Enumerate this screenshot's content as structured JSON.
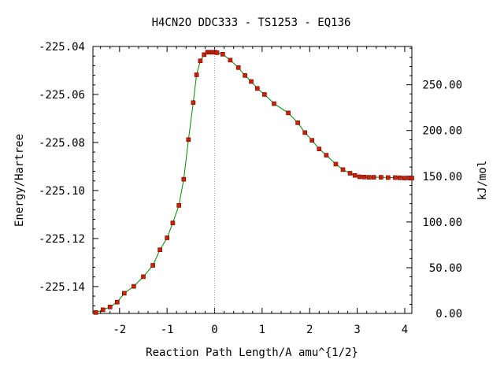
{
  "chart_data": {
    "type": "line",
    "title": "H4CN2O   DDC333 - TS1253 - EQ136",
    "xlabel": "Reaction Path Length/A amu^{1/2}",
    "ylabel": "Energy/Hartree",
    "y2label": "kJ/mol",
    "xlim": [
      -2.56,
      4.15
    ],
    "ylim": [
      -225.1512,
      -225.04
    ],
    "y2lim": [
      0.0,
      291.9
    ],
    "x_ticks": [
      "-2",
      "-1",
      "0",
      "1",
      "2",
      "3",
      "4"
    ],
    "y_ticks": [
      "-225.04",
      "-225.06",
      "-225.08",
      "-225.10",
      "-225.12",
      "-225.14"
    ],
    "y2_ticks": [
      "0.00",
      "50.00",
      "100.00",
      "150.00",
      "200.00",
      "250.00"
    ],
    "ts_marker_x": 0.0,
    "grid": false,
    "colors": {
      "line": "#008800",
      "markers": "#cc2200",
      "marker_edge": "#660000",
      "ts_line": "#999999"
    },
    "series": [
      {
        "x": [
          -2.5,
          -2.35,
          -2.2,
          -2.05,
          -1.9,
          -1.7,
          -1.5,
          -1.3,
          -1.15,
          -1.0,
          -0.88,
          -0.75,
          -0.65,
          -0.55,
          -0.45,
          -0.38,
          -0.3,
          -0.22,
          -0.15,
          -0.1,
          -0.05,
          0.0,
          0.05,
          0.17,
          0.33,
          0.5,
          0.64,
          0.77,
          0.9,
          1.05,
          1.25,
          1.55,
          1.75,
          1.9,
          2.05,
          2.2,
          2.35,
          2.55,
          2.7,
          2.85,
          2.95,
          3.05,
          3.15,
          3.25,
          3.35,
          3.5,
          3.65,
          3.8,
          3.9,
          4.0,
          4.1,
          4.15
        ],
        "y": [
          -225.1508,
          -225.1497,
          -225.1485,
          -225.1465,
          -225.1428,
          -225.1399,
          -225.1359,
          -225.1312,
          -225.1247,
          -225.1197,
          -225.1135,
          -225.1062,
          -225.0953,
          -225.0788,
          -225.0634,
          -225.0518,
          -225.046,
          -225.0434,
          -225.0424,
          -225.0424,
          -225.0424,
          -225.0424,
          -225.0426,
          -225.0432,
          -225.0457,
          -225.0488,
          -225.0521,
          -225.0546,
          -225.0575,
          -225.06,
          -225.0638,
          -225.0677,
          -225.0718,
          -225.0759,
          -225.0791,
          -225.0827,
          -225.0853,
          -225.089,
          -225.0913,
          -225.0928,
          -225.0937,
          -225.0943,
          -225.0944,
          -225.0945,
          -225.0945,
          -225.0945,
          -225.0946,
          -225.0946,
          -225.0947,
          -225.0948,
          -225.0948,
          -225.0948
        ]
      }
    ]
  }
}
